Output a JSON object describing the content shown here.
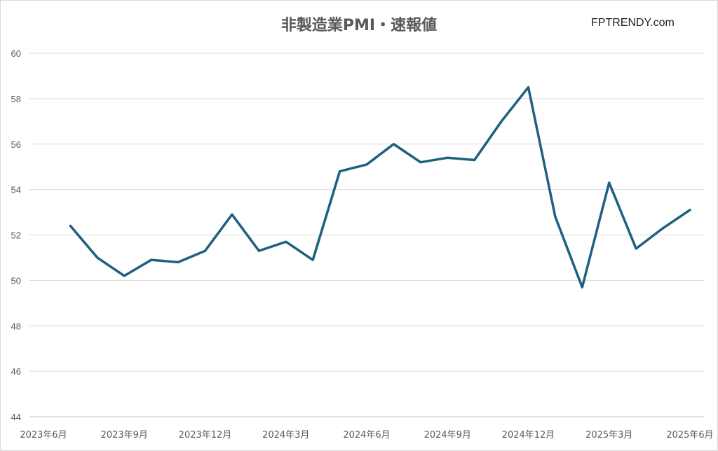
{
  "chart_data": {
    "type": "line",
    "title": "非製造業PMI・速報値",
    "watermark": "FPTRENDY.com",
    "xlabel": "",
    "ylabel": "",
    "ylim": [
      44,
      60
    ],
    "yticks": [
      44,
      46,
      48,
      50,
      52,
      54,
      56,
      58,
      60
    ],
    "grid": true,
    "line_color": "#1f6080",
    "x_tick_labels": [
      "2023年6月",
      "2023年9月",
      "2023年12月",
      "2024年3月",
      "2024年6月",
      "2024年9月",
      "2024年12月",
      "2025年3月",
      "2025年6月"
    ],
    "x": [
      "2023-07",
      "2023-08",
      "2023-09",
      "2023-10",
      "2023-11",
      "2023-12",
      "2024-01",
      "2024-02",
      "2024-03",
      "2024-04",
      "2024-05",
      "2024-06",
      "2024-07",
      "2024-08",
      "2024-09",
      "2024-10",
      "2024-11",
      "2024-12",
      "2025-01",
      "2025-02",
      "2025-03",
      "2025-04",
      "2025-05",
      "2025-06"
    ],
    "values": [
      52.4,
      51.0,
      50.2,
      50.9,
      50.8,
      51.3,
      52.9,
      51.3,
      51.7,
      50.9,
      54.8,
      55.1,
      56.0,
      55.2,
      55.4,
      55.3,
      57.0,
      58.5,
      52.8,
      49.7,
      54.3,
      51.4,
      52.3,
      53.1
    ]
  }
}
